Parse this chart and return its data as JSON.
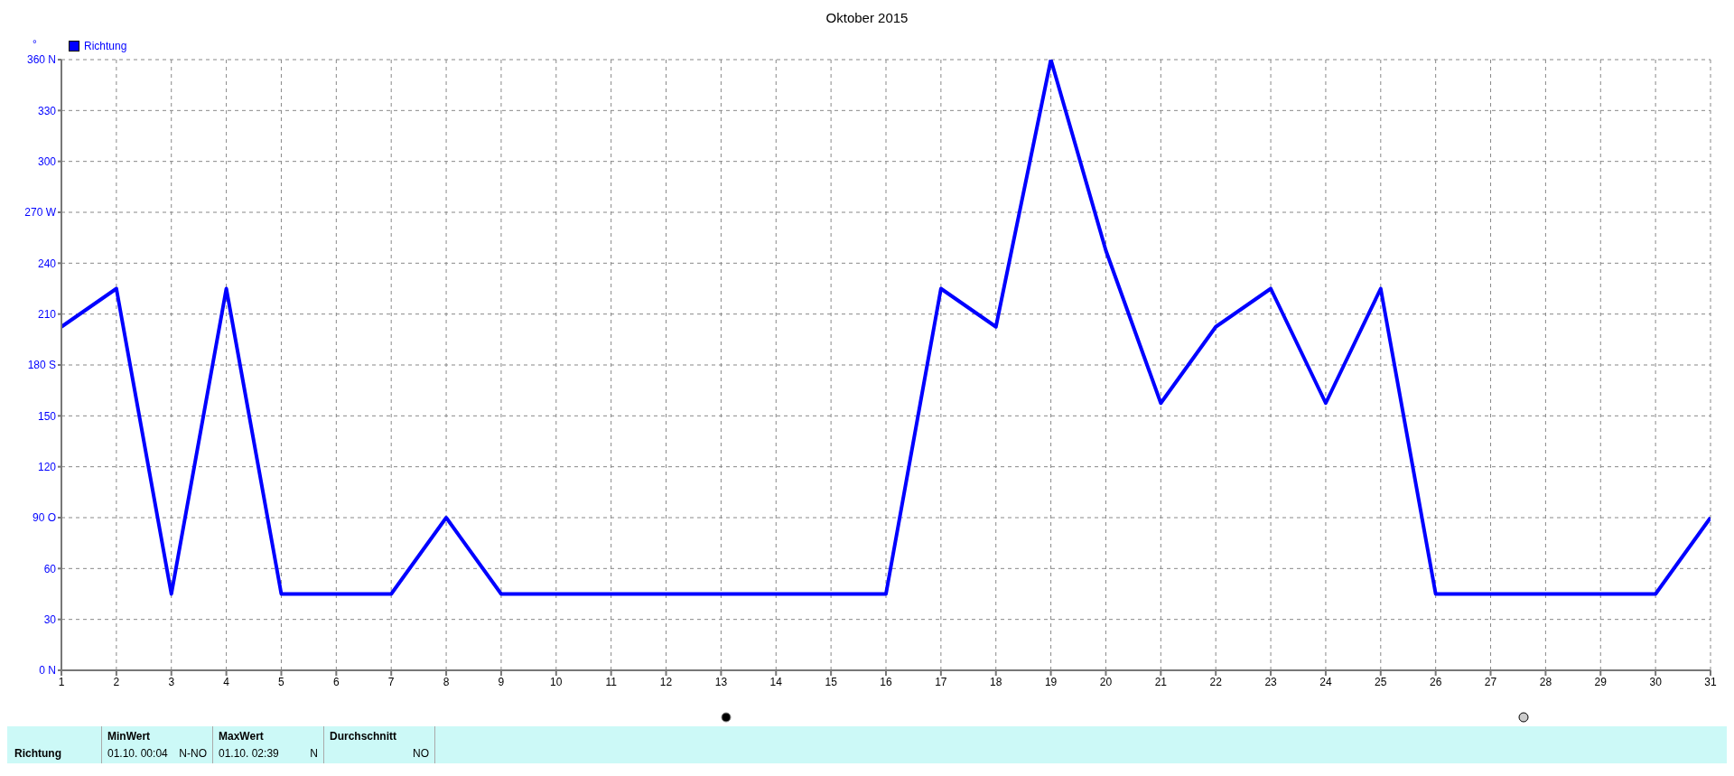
{
  "chart_data": {
    "type": "line",
    "title": "Oktober 2015",
    "ylabel": "°",
    "x": [
      1,
      2,
      3,
      4,
      5,
      6,
      7,
      8,
      9,
      10,
      11,
      12,
      13,
      14,
      15,
      16,
      17,
      18,
      19,
      20,
      21,
      22,
      23,
      24,
      25,
      26,
      27,
      28,
      29,
      30,
      31
    ],
    "series": [
      {
        "name": "Richtung",
        "color": "#0000ff",
        "values": [
          202.5,
          225,
          45,
          225,
          45,
          45,
          45,
          90,
          45,
          45,
          45,
          45,
          45,
          45,
          45,
          45,
          225,
          202.5,
          360,
          247.5,
          157.5,
          202.5,
          225,
          157.5,
          225,
          45,
          45,
          45,
          45,
          45,
          90
        ]
      }
    ],
    "xlim": [
      1,
      31
    ],
    "xticks": [
      1,
      2,
      3,
      4,
      5,
      6,
      7,
      8,
      9,
      10,
      11,
      12,
      13,
      14,
      15,
      16,
      17,
      18,
      19,
      20,
      21,
      22,
      23,
      24,
      25,
      26,
      27,
      28,
      29,
      30,
      31
    ],
    "ylim": [
      0,
      360
    ],
    "yticks": [
      {
        "value": 0,
        "label": "0  N"
      },
      30,
      60,
      {
        "value": 90,
        "label": "90  O"
      },
      120,
      150,
      {
        "value": 180,
        "label": "180 S"
      },
      210,
      240,
      {
        "value": 270,
        "label": "270 W"
      },
      300,
      330,
      {
        "value": 360,
        "label": "360 N"
      }
    ],
    "grid": true,
    "legend": "top left",
    "marker": "none",
    "line_style": "solid",
    "annotations": [
      "MinWert",
      "01.10.  00:04",
      "N-NO",
      "MaxWert",
      "01.10.  02:39",
      "N",
      "Durchschnitt",
      "NO"
    ]
  }
}
